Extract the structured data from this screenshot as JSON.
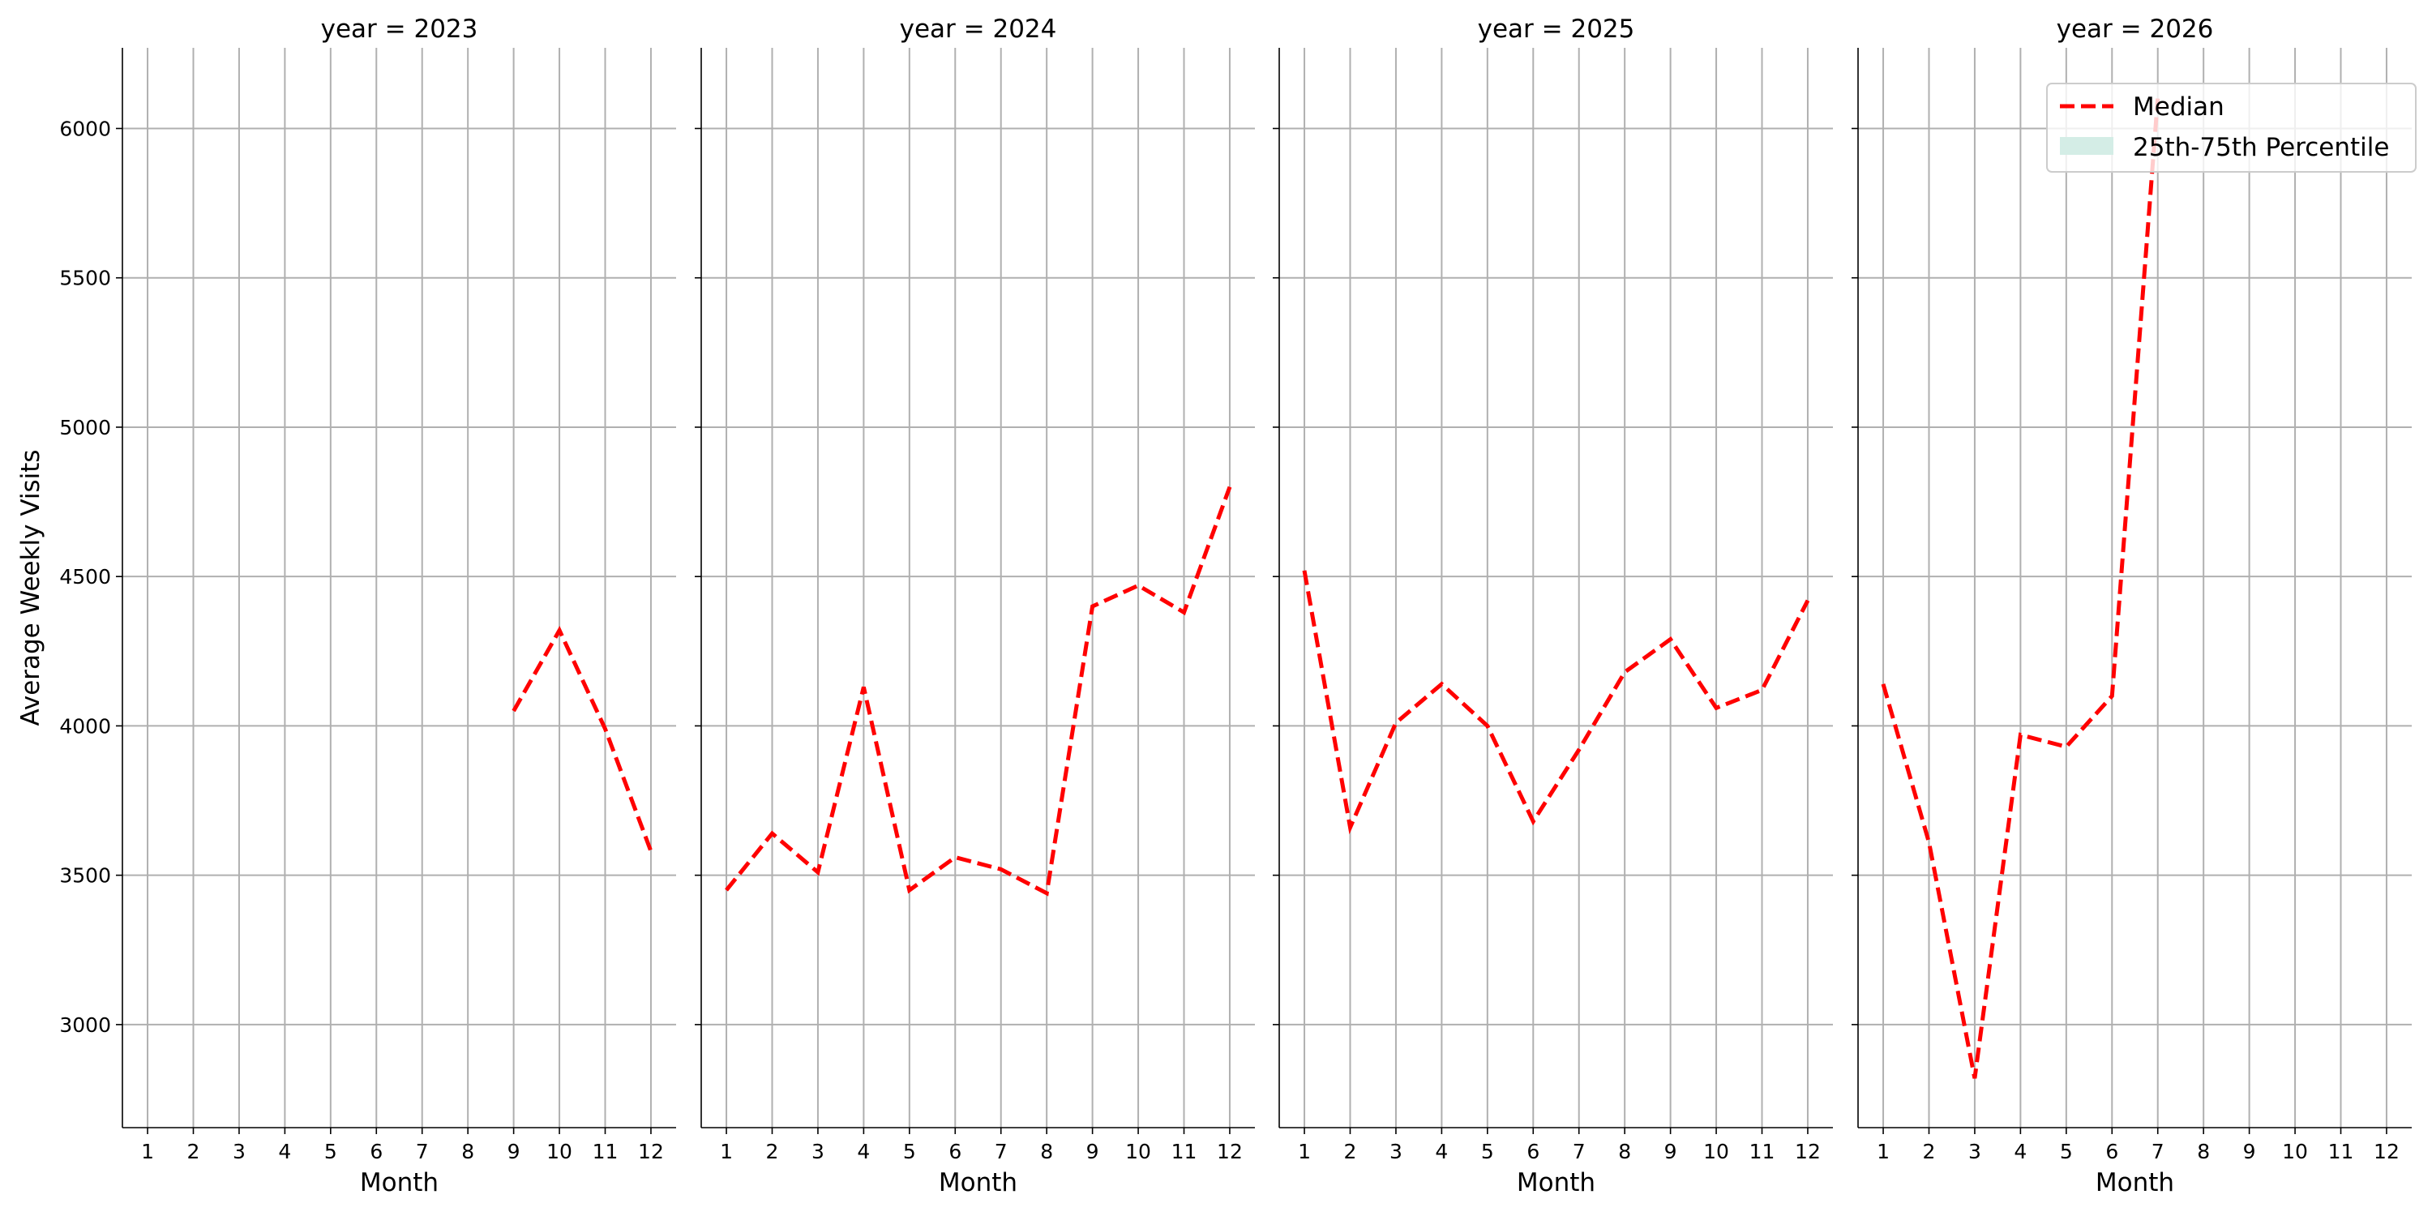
{
  "chart_data": {
    "type": "line",
    "ylabel": "Average Weekly Visits",
    "xlabel": "Month",
    "ylim": [
      2655,
      6270
    ],
    "yticks": [
      3000,
      3500,
      4000,
      4500,
      5000,
      5500,
      6000
    ],
    "xlim": [
      0.45,
      12.55
    ],
    "xticks": [
      1,
      2,
      3,
      4,
      5,
      6,
      7,
      8,
      9,
      10,
      11,
      12
    ],
    "grid": true,
    "legend_loc": "upper right",
    "series_name": "Median",
    "color": "#ff0000",
    "band_name": "25th-75th Percentile",
    "band_color": "#d4ede6",
    "facets": [
      {
        "title": "year = 2023",
        "x": [
          1,
          2,
          3,
          4,
          5,
          6,
          7,
          8,
          9,
          10,
          11,
          12
        ],
        "values": [
          null,
          null,
          null,
          null,
          null,
          null,
          null,
          null,
          4050,
          4320,
          3990,
          3580
        ]
      },
      {
        "title": "year = 2024",
        "x": [
          1,
          2,
          3,
          4,
          5,
          6,
          7,
          8,
          9,
          10,
          11,
          12
        ],
        "values": [
          3450,
          3640,
          3510,
          4130,
          3450,
          3560,
          3520,
          3440,
          4400,
          4470,
          4380,
          4800
        ]
      },
      {
        "title": "year = 2025",
        "x": [
          1,
          2,
          3,
          4,
          5,
          6,
          7,
          8,
          9,
          10,
          11,
          12
        ],
        "values": [
          4520,
          3660,
          4010,
          4140,
          4000,
          3680,
          3920,
          4180,
          4290,
          4060,
          4120,
          4420
        ]
      },
      {
        "title": "year = 2026",
        "x": [
          1,
          2,
          3,
          4,
          5,
          6,
          7,
          8,
          9,
          10,
          11,
          12
        ],
        "values": [
          4140,
          3610,
          2820,
          3970,
          3930,
          4100,
          6100,
          null,
          null,
          null,
          null,
          null
        ]
      }
    ]
  }
}
